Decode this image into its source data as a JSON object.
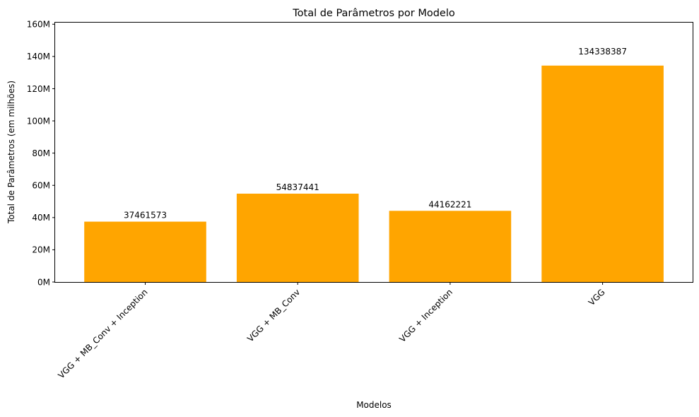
{
  "chart_data": {
    "type": "bar",
    "title": "Total de Parâmetros por Modelo",
    "xlabel": "Modelos",
    "ylabel": "Total de Parâmetros (em milhões)",
    "categories": [
      "VGG + MB_Conv + Inception",
      "VGG + MB_Conv",
      "VGG + Inception",
      "VGG"
    ],
    "values": [
      37461573,
      54837441,
      44162221,
      134338387
    ],
    "data_labels": [
      "37461573",
      "54837441",
      "44162221",
      "134338387"
    ],
    "ylim": [
      0,
      161000000
    ],
    "yticks": [
      0,
      20000000,
      40000000,
      60000000,
      80000000,
      100000000,
      120000000,
      140000000,
      160000000
    ],
    "ytick_labels": [
      "0M",
      "20M",
      "40M",
      "60M",
      "80M",
      "100M",
      "120M",
      "140M",
      "160M"
    ],
    "bar_color": "#ffa500",
    "grid": false,
    "legend": "none"
  }
}
